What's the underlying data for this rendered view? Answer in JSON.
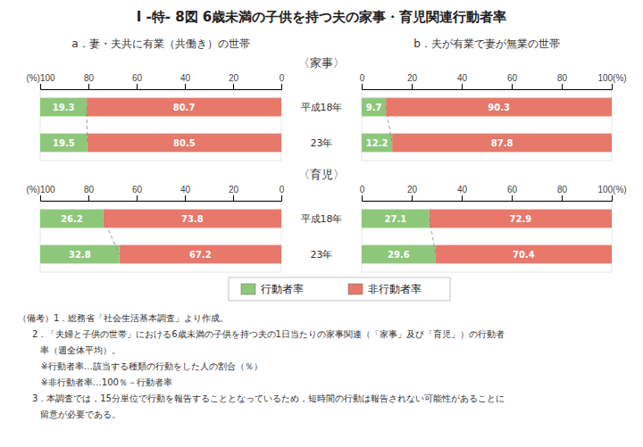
{
  "title": "I -特- 8図  6歳未満の子供を持つ夫の家事・育児関連行動者率",
  "annotations": [
    "（備考）1．総務省「社会生活基本調査」より作成。",
    "     2．「夫婦と子供の世帯」における6歳未満の子供を持つ夫の1日当たりの家事関連（「家事」及び「育児」）の行動者",
    "        率（週全体平均）。",
    "        ※行動者率…該当する種類の行動をした人の割合（％）",
    "        ※非行動者率…100％－行動者率",
    "     3．本調査では，15分単位で行動を報告することとなっているため，短時間の行動は報告されない可能性があることに",
    "        留意が必要である。"
  ],
  "chart_data": [
    {
      "type": "bar",
      "orientation": "horizontal",
      "stacked": true,
      "data_labels": true,
      "grid": false,
      "title": "〈家事〉",
      "subtitle": "a．妻・夫共に有業（共働き）の世帯",
      "categories": [
        "平成18年",
        "23年"
      ],
      "series": [
        {
          "color": "#e8786a",
          "values": [
            80.7,
            80.5
          ]
        },
        {
          "color": "#8dc87a",
          "values": [
            19.3,
            19.5
          ]
        }
      ],
      "xlim": [
        100,
        0
      ],
      "xticks": [
        {
          "value": 100,
          "label": "(%)100"
        },
        80,
        60,
        40,
        20,
        0
      ]
    },
    {
      "type": "bar",
      "orientation": "horizontal",
      "stacked": true,
      "data_labels": true,
      "grid": false,
      "subtitle": "b．夫が有業で妻が無業の世帯",
      "categories": [
        "平成18年",
        "23年"
      ],
      "series": [
        {
          "name": "行動者率",
          "color": "#8dc87a",
          "values": [
            9.7,
            12.2
          ]
        },
        {
          "name": "非行動者率",
          "color": "#e8786a",
          "values": [
            90.3,
            87.8
          ]
        }
      ],
      "xlim": [
        0,
        100
      ],
      "xticks": [
        0,
        20,
        40,
        60,
        80,
        {
          "value": 100,
          "label": "100(%)"
        }
      ]
    },
    {
      "type": "bar",
      "orientation": "horizontal",
      "stacked": true,
      "data_labels": true,
      "grid": false,
      "title": "〈育児〉",
      "categories": [
        "平成18年",
        "23年"
      ],
      "series": [
        {
          "color": "#e8786a",
          "values": [
            73.8,
            67.2
          ]
        },
        {
          "color": "#8dc87a",
          "values": [
            26.2,
            32.8
          ]
        }
      ],
      "xlim": [
        100,
        0
      ],
      "xticks": [
        {
          "value": 100,
          "label": "(%)100"
        },
        80,
        60,
        40,
        20,
        0
      ]
    },
    {
      "type": "bar",
      "orientation": "horizontal",
      "stacked": true,
      "data_labels": true,
      "grid": false,
      "categories": [
        "平成18年",
        "23年"
      ],
      "series": [
        {
          "color": "#8dc87a",
          "values": [
            27.1,
            29.6
          ]
        },
        {
          "color": "#e8786a",
          "values": [
            72.9,
            70.4
          ]
        }
      ],
      "xlim": [
        0,
        100
      ],
      "xticks": [
        0,
        20,
        40,
        60,
        80,
        {
          "value": 100,
          "label": "100(%)"
        }
      ]
    }
  ]
}
